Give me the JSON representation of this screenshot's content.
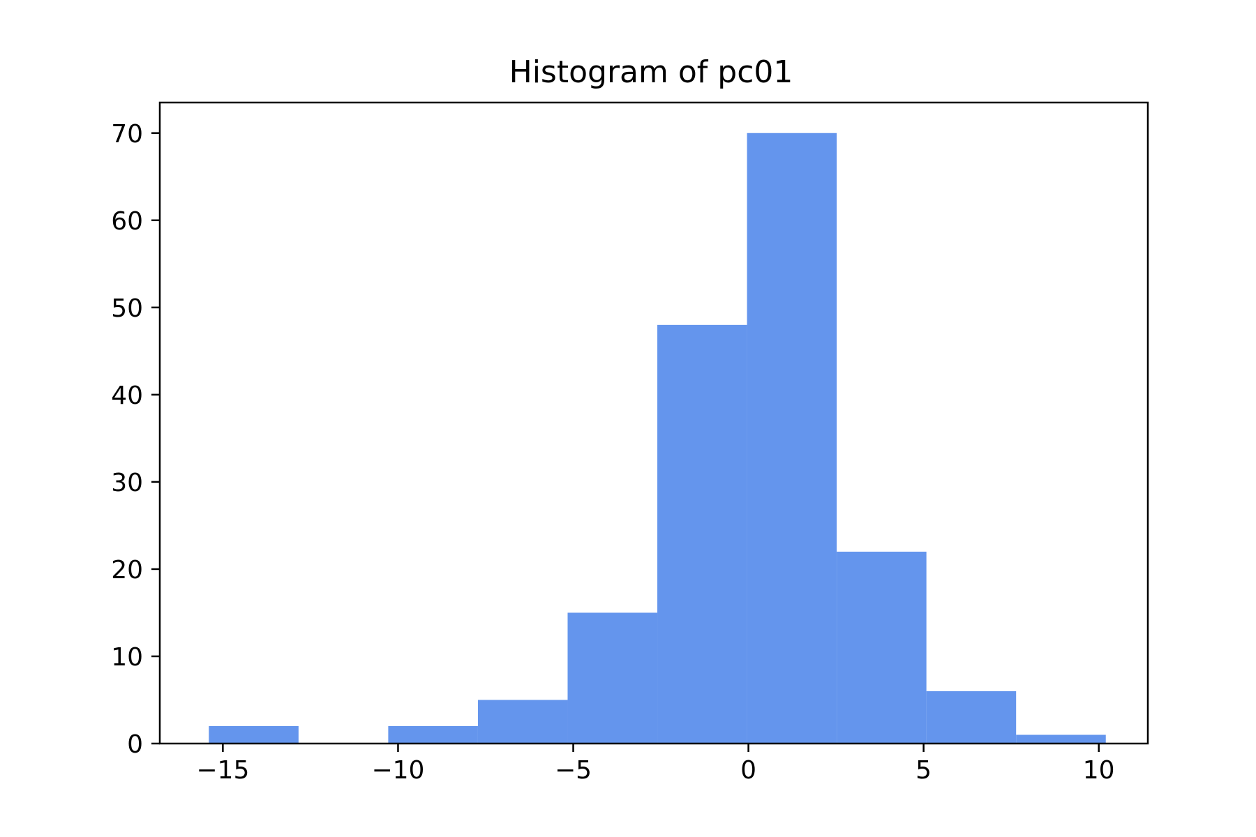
{
  "chart_data": {
    "type": "bar",
    "title": "Histogram of pc01",
    "xlabel": "",
    "ylabel": "",
    "bar_color": "#6495ED",
    "xlim": [
      -16.8,
      11.4
    ],
    "ylim": [
      0,
      73.5
    ],
    "bins": [
      {
        "start": -15.4,
        "end": -12.84,
        "count": 2
      },
      {
        "start": -12.84,
        "end": -10.28,
        "count": 0
      },
      {
        "start": -10.28,
        "end": -7.72,
        "count": 2
      },
      {
        "start": -7.72,
        "end": -5.16,
        "count": 5
      },
      {
        "start": -5.16,
        "end": -2.6,
        "count": 15
      },
      {
        "start": -2.6,
        "end": -0.04,
        "count": 48
      },
      {
        "start": -0.04,
        "end": 2.52,
        "count": 70
      },
      {
        "start": 2.52,
        "end": 5.08,
        "count": 22
      },
      {
        "start": 5.08,
        "end": 7.64,
        "count": 6
      },
      {
        "start": 7.64,
        "end": 10.2,
        "count": 1
      }
    ],
    "x_ticks": [
      {
        "value": -15,
        "label": "−15"
      },
      {
        "value": -10,
        "label": "−10"
      },
      {
        "value": -5,
        "label": "−5"
      },
      {
        "value": 0,
        "label": "0"
      },
      {
        "value": 5,
        "label": "5"
      },
      {
        "value": 10,
        "label": "10"
      }
    ],
    "y_ticks": [
      {
        "value": 0,
        "label": "0"
      },
      {
        "value": 10,
        "label": "10"
      },
      {
        "value": 20,
        "label": "20"
      },
      {
        "value": 30,
        "label": "30"
      },
      {
        "value": 40,
        "label": "40"
      },
      {
        "value": 50,
        "label": "50"
      },
      {
        "value": 60,
        "label": "60"
      },
      {
        "value": 70,
        "label": "70"
      }
    ],
    "grid": false,
    "legend": "none"
  }
}
